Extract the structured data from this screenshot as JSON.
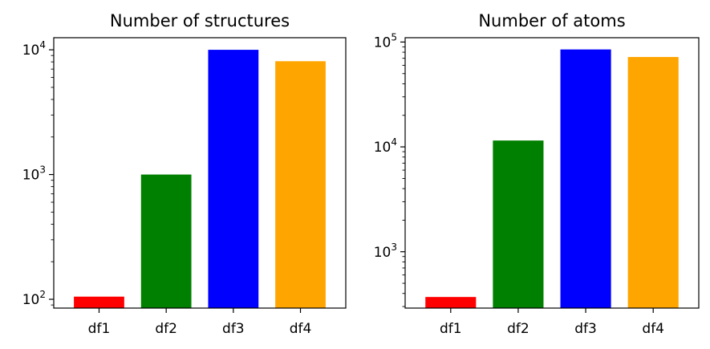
{
  "chart_data": [
    {
      "type": "bar",
      "title": "Number of structures",
      "xlabel": "",
      "ylabel": "",
      "yscale": "log",
      "ylim": [
        85,
        12500
      ],
      "categories": [
        "df1",
        "df2",
        "df3",
        "df4"
      ],
      "values": [
        105,
        1000,
        10000,
        8100
      ],
      "colors": [
        "#ff0000",
        "#008000",
        "#0000ff",
        "#ffa500"
      ],
      "y_ticks": [
        {
          "value": 100,
          "base": "10",
          "exp": "2"
        },
        {
          "value": 1000,
          "base": "10",
          "exp": "3"
        },
        {
          "value": 10000,
          "base": "10",
          "exp": "4"
        }
      ],
      "grid": false,
      "legend": "none"
    },
    {
      "type": "bar",
      "title": "Number of atoms",
      "xlabel": "",
      "ylabel": "",
      "yscale": "log",
      "ylim": [
        290,
        110000
      ],
      "categories": [
        "df1",
        "df2",
        "df3",
        "df4"
      ],
      "values": [
        370,
        11500,
        85000,
        72000
      ],
      "colors": [
        "#ff0000",
        "#008000",
        "#0000ff",
        "#ffa500"
      ],
      "y_ticks": [
        {
          "value": 1000,
          "base": "10",
          "exp": "3"
        },
        {
          "value": 10000,
          "base": "10",
          "exp": "4"
        },
        {
          "value": 100000,
          "base": "10",
          "exp": "5"
        }
      ],
      "grid": false,
      "legend": "none"
    }
  ]
}
